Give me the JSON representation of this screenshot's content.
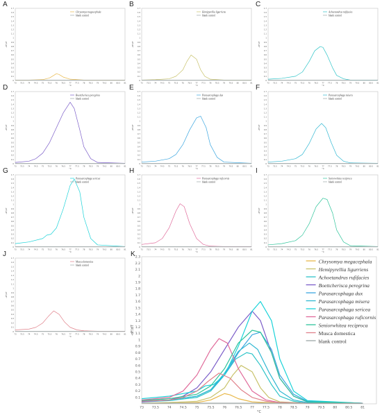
{
  "panel_labels": [
    "A",
    "B",
    "C",
    "D",
    "E",
    "F",
    "G",
    "H",
    "I",
    "J",
    "K"
  ],
  "small_y_ticks": [
    "0",
    "0.1",
    "0.2",
    "0.3",
    "0.4",
    "0.5",
    "0.6",
    "0.7",
    "0.8",
    "0.9",
    "1",
    "1.1",
    "1.2",
    "1.3",
    "1.4",
    "1.5",
    "1.6",
    "1.7"
  ],
  "small_x_ticks": [
    "73",
    "73.5",
    "74",
    "74.5",
    "75",
    "75.5",
    "76",
    "76.5",
    "77",
    "77.5",
    "78",
    "78.5",
    "79",
    "79.5",
    "80",
    "80.5",
    "81"
  ],
  "blank_label": "blank control",
  "colors": {
    "Chrysomya megacephala": "#e8b84a",
    "Hemipyrellia ligurriens": "#c8c26a",
    "Achoetandrus rufifacies": "#2ec4c8",
    "Boettcherisca peregrina": "#7a5cc8",
    "Parasarcophaga dux": "#3aa6e0",
    "Parasarcophaga misera": "#2fb7d2",
    "Parasarcophaga sericea": "#19d2d8",
    "Parasarcophaga ruficornis": "#e06a9a",
    "Seniorwhitea reciproca": "#2ec49a",
    "Musca domestica": "#e0808a",
    "blank control": "#9aa6a6"
  },
  "chart_data": [
    {
      "type": "line",
      "panel": "A",
      "xlim": [
        73,
        81
      ],
      "ylim": [
        0,
        1.7
      ],
      "series": [
        {
          "name": "Chrysomya megacephala",
          "x": [
            73,
            74,
            75,
            75.5,
            75.8,
            76,
            76.2,
            76.5,
            77,
            77.5,
            78,
            79,
            81
          ],
          "values": [
            0.01,
            0.01,
            0.02,
            0.06,
            0.12,
            0.16,
            0.14,
            0.08,
            0.03,
            0.02,
            0.01,
            0.01,
            0.01
          ]
        },
        {
          "name": "blank control",
          "x": [
            73,
            75,
            77,
            79,
            81
          ],
          "values": [
            0.01,
            0.01,
            0.01,
            0.01,
            0.01
          ]
        }
      ]
    },
    {
      "type": "line",
      "panel": "B",
      "xlim": [
        73,
        81
      ],
      "ylim": [
        0,
        1.7
      ],
      "series": [
        {
          "name": "Hemipyrellia ligurriens",
          "x": [
            73,
            74,
            75,
            75.5,
            76,
            76.3,
            76.6,
            77,
            77.3,
            77.6,
            78,
            79,
            81
          ],
          "values": [
            0.01,
            0.02,
            0.04,
            0.1,
            0.25,
            0.45,
            0.6,
            0.5,
            0.25,
            0.1,
            0.03,
            0.01,
            0.01
          ]
        },
        {
          "name": "blank control",
          "x": [
            73,
            75,
            77,
            79,
            81
          ],
          "values": [
            0.01,
            0.01,
            0.01,
            0.01,
            0.01
          ]
        }
      ]
    },
    {
      "type": "line",
      "panel": "C",
      "xlim": [
        73,
        81
      ],
      "ylim": [
        0,
        1.7
      ],
      "series": [
        {
          "name": "Achoetandrus rufifacies",
          "x": [
            73,
            74,
            75,
            75.5,
            76,
            76.4,
            76.8,
            77,
            77.3,
            77.7,
            78,
            78.5,
            79,
            81
          ],
          "values": [
            0.03,
            0.05,
            0.1,
            0.2,
            0.45,
            0.7,
            0.8,
            0.78,
            0.6,
            0.3,
            0.12,
            0.04,
            0.01,
            0.01
          ]
        },
        {
          "name": "blank control",
          "x": [
            73,
            75,
            77,
            79,
            81
          ],
          "values": [
            0.01,
            0.01,
            0.01,
            0.01,
            0.01
          ]
        }
      ]
    },
    {
      "type": "line",
      "panel": "D",
      "xlim": [
        73,
        81
      ],
      "ylim": [
        0,
        1.7
      ],
      "series": [
        {
          "name": "Boettcherisca peregrina",
          "x": [
            73,
            74,
            74.5,
            75,
            75.5,
            76,
            76.5,
            77,
            77.3,
            77.7,
            78,
            78.5,
            79,
            81
          ],
          "values": [
            0.03,
            0.06,
            0.12,
            0.25,
            0.5,
            0.85,
            1.2,
            1.45,
            1.3,
            0.8,
            0.4,
            0.12,
            0.03,
            0.01
          ]
        },
        {
          "name": "blank control",
          "x": [
            73,
            75,
            77,
            79,
            81
          ],
          "values": [
            0.01,
            0.01,
            0.01,
            0.01,
            0.01
          ]
        }
      ]
    },
    {
      "type": "line",
      "panel": "E",
      "xlim": [
        73,
        81
      ],
      "ylim": [
        0,
        1.7
      ],
      "series": [
        {
          "name": "Parasarcophaga dux",
          "x": [
            73,
            74,
            75,
            75.5,
            76,
            76.5,
            77,
            77.3,
            77.7,
            78,
            78.5,
            79,
            81
          ],
          "values": [
            0.04,
            0.06,
            0.12,
            0.22,
            0.45,
            0.8,
            1.08,
            1.12,
            0.85,
            0.45,
            0.15,
            0.04,
            0.01
          ]
        },
        {
          "name": "blank control",
          "x": [
            73,
            75,
            77,
            79,
            81
          ],
          "values": [
            0.01,
            0.01,
            0.01,
            0.01,
            0.01
          ]
        }
      ]
    },
    {
      "type": "line",
      "panel": "F",
      "xlim": [
        73,
        81
      ],
      "ylim": [
        0,
        1.7
      ],
      "series": [
        {
          "name": "Parasarcophaga misera",
          "x": [
            73,
            74,
            75,
            75.5,
            76,
            76.5,
            76.9,
            77.2,
            77.6,
            78,
            78.5,
            79,
            81
          ],
          "values": [
            0.04,
            0.06,
            0.12,
            0.22,
            0.48,
            0.82,
            0.95,
            0.85,
            0.5,
            0.2,
            0.06,
            0.02,
            0.01
          ]
        },
        {
          "name": "blank control",
          "x": [
            73,
            75,
            77,
            79,
            81
          ],
          "values": [
            0.01,
            0.01,
            0.01,
            0.01,
            0.01
          ]
        }
      ]
    },
    {
      "type": "line",
      "panel": "G",
      "xlim": [
        73,
        81
      ],
      "ylim": [
        0,
        1.7
      ],
      "series": [
        {
          "name": "Parasarcophaga sericea",
          "x": [
            73,
            74,
            75,
            75.3,
            75.6,
            76,
            76.5,
            77,
            77.3,
            77.7,
            78,
            78.5,
            79,
            81
          ],
          "values": [
            0.08,
            0.12,
            0.2,
            0.28,
            0.3,
            0.45,
            0.9,
            1.45,
            1.6,
            1.3,
            0.7,
            0.2,
            0.05,
            0.01
          ]
        },
        {
          "name": "blank control",
          "x": [
            73,
            75,
            77,
            79,
            81
          ],
          "values": [
            0.01,
            0.01,
            0.01,
            0.01,
            0.01
          ]
        }
      ]
    },
    {
      "type": "line",
      "panel": "H",
      "xlim": [
        73,
        81
      ],
      "ylim": [
        0,
        1.7
      ],
      "series": [
        {
          "name": "Parasarcophaga ruficornis",
          "x": [
            73,
            74,
            74.5,
            75,
            75.5,
            75.8,
            76.1,
            76.5,
            77,
            77.5,
            78,
            79,
            81
          ],
          "values": [
            0.06,
            0.1,
            0.2,
            0.45,
            0.85,
            1.02,
            0.95,
            0.55,
            0.2,
            0.06,
            0.02,
            0.01,
            0.01
          ]
        },
        {
          "name": "blank control",
          "x": [
            73,
            75,
            77,
            79,
            81
          ],
          "values": [
            0.01,
            0.01,
            0.01,
            0.01,
            0.01
          ]
        }
      ]
    },
    {
      "type": "line",
      "panel": "I",
      "xlim": [
        73,
        81
      ],
      "ylim": [
        0,
        1.7
      ],
      "series": [
        {
          "name": "Seniorwhitea reciproca",
          "x": [
            73,
            74,
            75,
            75.5,
            76,
            76.5,
            77,
            77.3,
            77.7,
            78,
            78.5,
            79,
            81
          ],
          "values": [
            0.05,
            0.08,
            0.15,
            0.28,
            0.55,
            0.95,
            1.15,
            1.12,
            0.8,
            0.4,
            0.12,
            0.03,
            0.01
          ]
        },
        {
          "name": "blank control",
          "x": [
            73,
            75,
            77,
            79,
            81
          ],
          "values": [
            0.01,
            0.01,
            0.01,
            0.01,
            0.01
          ]
        }
      ]
    },
    {
      "type": "line",
      "panel": "J",
      "xlim": [
        73,
        81
      ],
      "ylim": [
        0,
        1.7
      ],
      "series": [
        {
          "name": "Musca domestica",
          "x": [
            73,
            74,
            74.5,
            75,
            75.4,
            75.8,
            76.2,
            76.6,
            77,
            77.5,
            78,
            79,
            81
          ],
          "values": [
            0.04,
            0.06,
            0.1,
            0.2,
            0.35,
            0.48,
            0.4,
            0.22,
            0.1,
            0.04,
            0.02,
            0.01,
            0.01
          ]
        },
        {
          "name": "blank control",
          "x": [
            73,
            75,
            77,
            79,
            81
          ],
          "values": [
            0.01,
            0.01,
            0.01,
            0.01,
            0.01
          ]
        }
      ]
    },
    {
      "type": "line",
      "panel": "K",
      "xlim": [
        73,
        81.5
      ],
      "ylim": [
        0,
        2.3
      ],
      "xlabel": "°C",
      "ylabel": "-dF/dT",
      "xticks": [
        "73",
        "73.5",
        "74",
        "74.5",
        "75",
        "75.5",
        "76",
        "76.5",
        "77",
        "77.5",
        "78",
        "78.5",
        "79",
        "79.5",
        "80",
        "80.5",
        "81"
      ],
      "yticks": [
        "0.1",
        "0.2",
        "0.3",
        "0.4",
        "0.5",
        "0.6",
        "0.7",
        "0.8",
        "0.9",
        "1",
        "1.1",
        "1.2",
        "1.3",
        "1.4",
        "1.5",
        "1.6",
        "1.7",
        "1.8",
        "1.9",
        "2",
        "2.1",
        "2.2",
        "2.3"
      ],
      "series": [
        {
          "name": "Chrysomya megacephala",
          "x": [
            73,
            74,
            75,
            75.5,
            75.8,
            76,
            76.2,
            76.5,
            77,
            77.5,
            78,
            79,
            81
          ],
          "values": [
            0.01,
            0.01,
            0.02,
            0.06,
            0.12,
            0.16,
            0.14,
            0.08,
            0.03,
            0.02,
            0.01,
            0.01,
            0.01
          ]
        },
        {
          "name": "Hemipyrellia ligurriens",
          "x": [
            73,
            74,
            75,
            75.5,
            76,
            76.3,
            76.6,
            77,
            77.3,
            77.6,
            78,
            79,
            81
          ],
          "values": [
            0.01,
            0.02,
            0.04,
            0.1,
            0.25,
            0.45,
            0.6,
            0.5,
            0.25,
            0.1,
            0.03,
            0.01,
            0.01
          ]
        },
        {
          "name": "Achoetandrus rufifacies",
          "x": [
            73,
            74,
            75,
            75.5,
            76,
            76.4,
            76.8,
            77,
            77.3,
            77.7,
            78,
            78.5,
            79,
            81
          ],
          "values": [
            0.03,
            0.05,
            0.1,
            0.2,
            0.45,
            0.7,
            0.8,
            0.78,
            0.6,
            0.3,
            0.12,
            0.04,
            0.01,
            0.01
          ]
        },
        {
          "name": "Boettcherisca peregrina",
          "x": [
            73,
            74,
            74.5,
            75,
            75.5,
            76,
            76.5,
            77,
            77.3,
            77.7,
            78,
            78.5,
            79,
            81
          ],
          "values": [
            0.03,
            0.06,
            0.12,
            0.25,
            0.5,
            0.85,
            1.2,
            1.45,
            1.3,
            0.8,
            0.4,
            0.12,
            0.03,
            0.01
          ]
        },
        {
          "name": "Parasarcophaga dux",
          "x": [
            73,
            74,
            75,
            75.5,
            76,
            76.5,
            77,
            77.3,
            77.7,
            78,
            78.5,
            79,
            81
          ],
          "values": [
            0.04,
            0.06,
            0.12,
            0.22,
            0.45,
            0.8,
            1.08,
            1.12,
            0.85,
            0.45,
            0.15,
            0.04,
            0.01
          ]
        },
        {
          "name": "Parasarcophaga misera",
          "x": [
            73,
            74,
            75,
            75.5,
            76,
            76.5,
            76.9,
            77.2,
            77.6,
            78,
            78.5,
            79,
            81
          ],
          "values": [
            0.04,
            0.06,
            0.12,
            0.22,
            0.48,
            0.82,
            0.95,
            0.85,
            0.5,
            0.2,
            0.06,
            0.02,
            0.01
          ]
        },
        {
          "name": "Parasarcophaga sericea",
          "x": [
            73,
            74,
            75,
            75.3,
            75.6,
            76,
            76.5,
            77,
            77.3,
            77.7,
            78,
            78.5,
            79,
            81
          ],
          "values": [
            0.08,
            0.12,
            0.2,
            0.28,
            0.3,
            0.45,
            0.9,
            1.45,
            1.6,
            1.3,
            0.7,
            0.2,
            0.05,
            0.01
          ]
        },
        {
          "name": "Parasarcophaga ruficornis",
          "x": [
            73,
            74,
            74.5,
            75,
            75.5,
            75.8,
            76.1,
            76.5,
            77,
            77.5,
            78,
            79,
            81
          ],
          "values": [
            0.06,
            0.1,
            0.2,
            0.45,
            0.85,
            1.02,
            0.95,
            0.55,
            0.2,
            0.06,
            0.02,
            0.01,
            0.01
          ]
        },
        {
          "name": "Seniorwhitea reciproca",
          "x": [
            73,
            74,
            75,
            75.5,
            76,
            76.5,
            77,
            77.3,
            77.7,
            78,
            78.5,
            79,
            81
          ],
          "values": [
            0.05,
            0.08,
            0.15,
            0.28,
            0.55,
            0.95,
            1.15,
            1.12,
            0.8,
            0.4,
            0.12,
            0.03,
            0.01
          ]
        },
        {
          "name": "Musca domestica",
          "x": [
            73,
            74,
            74.5,
            75,
            75.4,
            75.8,
            76.2,
            76.6,
            77,
            77.5,
            78,
            79,
            81
          ],
          "values": [
            0.04,
            0.06,
            0.1,
            0.2,
            0.35,
            0.48,
            0.4,
            0.22,
            0.1,
            0.04,
            0.02,
            0.01,
            0.01
          ]
        },
        {
          "name": "blank control",
          "x": [
            73,
            75,
            77,
            79,
            81
          ],
          "values": [
            0.01,
            0.01,
            0.01,
            0.01,
            0.01
          ]
        }
      ]
    }
  ]
}
